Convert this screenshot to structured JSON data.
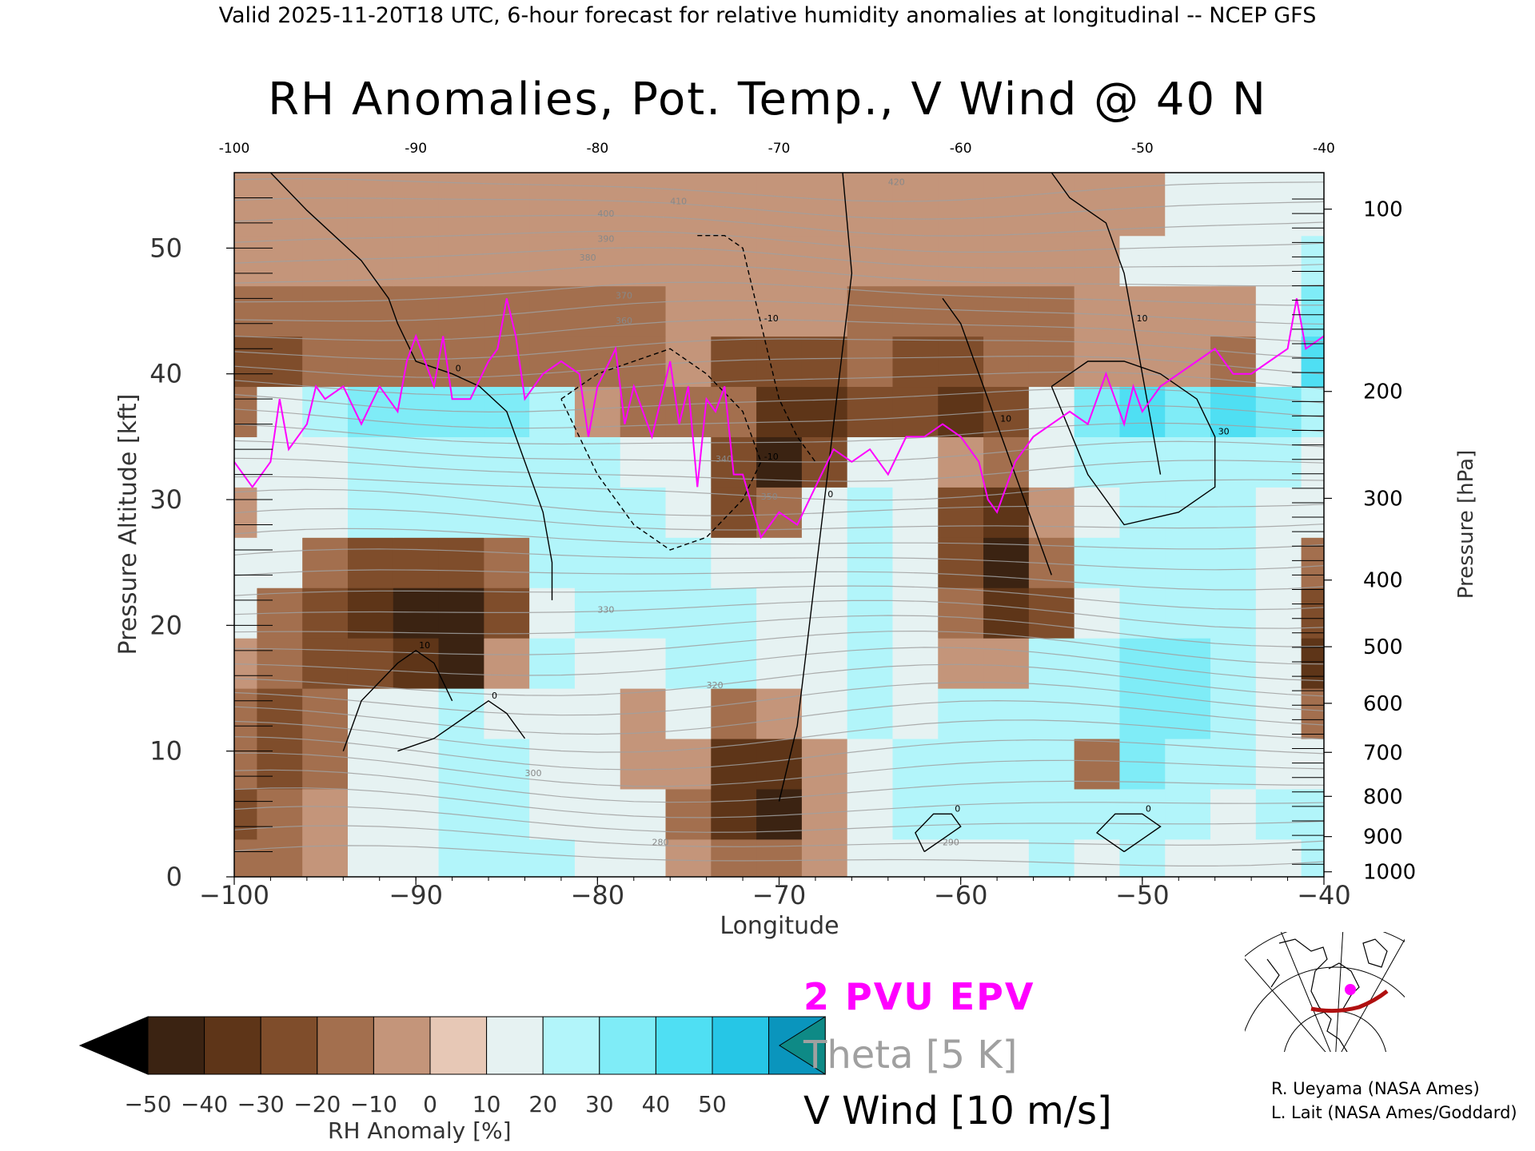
{
  "header": {
    "text": "Valid 2025-11-20T18 UTC, 6-hour forecast for relative humidity anomalies at longitudinal -- NCEP GFS"
  },
  "chart_data": {
    "type": "heatmap",
    "title": "RH Anomalies, Pot. Temp., V Wind @ 40 N",
    "xlabel": "Longitude",
    "ylabel_left": "Pressure Altitude [kft]",
    "ylabel_right": "Pressure [hPa]",
    "xlim": [
      -100,
      -40
    ],
    "ylim": [
      0,
      56
    ],
    "x_ticks": [
      -100,
      -90,
      -80,
      -70,
      -60,
      -50,
      -40
    ],
    "x_tick_labels": [
      "−100",
      "−90",
      "−80",
      "−70",
      "−60",
      "−50",
      "−40"
    ],
    "x_top_tick_labels": [
      "-100",
      "-90",
      "-80",
      "-70",
      "-60",
      "-50",
      "-40"
    ],
    "y_left_ticks": [
      0,
      10,
      20,
      30,
      40,
      50
    ],
    "y_right_ticks": [
      {
        "label": "100",
        "kft": 53.1
      },
      {
        "label": "200",
        "kft": 38.6
      },
      {
        "label": "300",
        "kft": 30.1
      },
      {
        "label": "400",
        "kft": 23.6
      },
      {
        "label": "500",
        "kft": 18.3
      },
      {
        "label": "600",
        "kft": 13.8
      },
      {
        "label": "700",
        "kft": 9.9
      },
      {
        "label": "800",
        "kft": 6.4
      },
      {
        "label": "900",
        "kft": 3.2
      },
      {
        "label": "1000",
        "kft": 0.4
      }
    ],
    "rh_anomaly_field": {
      "x_lon": [
        -100,
        -97.5,
        -95,
        -92.5,
        -90,
        -87.5,
        -85,
        -82.5,
        -80,
        -77.5,
        -75,
        -72.5,
        -70,
        -67.5,
        -65,
        -62.5,
        -60,
        -57.5,
        -55,
        -52.5,
        -50,
        -47.5,
        -45,
        -42.5,
        -40
      ],
      "y_kft": [
        1,
        5,
        9,
        13,
        17,
        21,
        25,
        29,
        33,
        37,
        41,
        45,
        49,
        53
      ],
      "values": [
        [
          -20,
          -15,
          -5,
          10,
          15,
          20,
          25,
          20,
          10,
          5,
          -10,
          -20,
          -15,
          -5,
          10,
          15,
          10,
          15,
          20,
          15,
          20,
          15,
          10,
          15,
          20
        ],
        [
          -25,
          -20,
          -10,
          5,
          15,
          20,
          20,
          15,
          10,
          5,
          -15,
          -40,
          -45,
          -10,
          15,
          20,
          20,
          20,
          25,
          20,
          25,
          20,
          15,
          20,
          25
        ],
        [
          -20,
          -25,
          -15,
          5,
          15,
          25,
          20,
          15,
          15,
          -5,
          -10,
          -35,
          -35,
          -10,
          15,
          20,
          20,
          25,
          25,
          -20,
          30,
          25,
          20,
          15,
          10
        ],
        [
          -15,
          -25,
          -20,
          0,
          10,
          20,
          15,
          10,
          15,
          -10,
          10,
          -15,
          -10,
          10,
          20,
          15,
          20,
          20,
          20,
          25,
          35,
          30,
          25,
          15,
          -20
        ],
        [
          -10,
          -20,
          -25,
          -30,
          -40,
          -45,
          -10,
          20,
          15,
          15,
          25,
          20,
          5,
          15,
          20,
          10,
          -5,
          -10,
          25,
          25,
          30,
          30,
          25,
          10,
          -35
        ],
        [
          0,
          -15,
          -30,
          -40,
          -45,
          -45,
          -30,
          15,
          20,
          20,
          25,
          20,
          15,
          15,
          20,
          15,
          -20,
          -40,
          -30,
          15,
          25,
          25,
          20,
          15,
          -30
        ],
        [
          10,
          5,
          -20,
          -30,
          -30,
          -25,
          -15,
          20,
          25,
          20,
          25,
          15,
          15,
          15,
          20,
          10,
          -30,
          -45,
          -20,
          20,
          25,
          25,
          20,
          15,
          -15
        ],
        [
          -10,
          15,
          15,
          20,
          20,
          20,
          20,
          20,
          20,
          20,
          15,
          -25,
          -20,
          15,
          20,
          15,
          -25,
          -40,
          -10,
          15,
          20,
          20,
          20,
          15,
          10
        ],
        [
          15,
          15,
          15,
          20,
          20,
          20,
          25,
          20,
          20,
          15,
          10,
          -30,
          -45,
          -30,
          15,
          15,
          -10,
          -20,
          5,
          20,
          20,
          20,
          20,
          20,
          15
        ],
        [
          -15,
          10,
          25,
          30,
          35,
          30,
          35,
          25,
          -10,
          -15,
          -15,
          -20,
          -40,
          -35,
          -25,
          -25,
          -35,
          -30,
          15,
          35,
          40,
          35,
          40,
          35,
          20
        ],
        [
          -25,
          -30,
          -20,
          -20,
          -15,
          -15,
          -20,
          -20,
          -20,
          -15,
          -10,
          -25,
          -25,
          -25,
          -15,
          -25,
          -30,
          -20,
          -15,
          -10,
          -10,
          -10,
          -15,
          15,
          45
        ],
        [
          -15,
          -20,
          -20,
          -15,
          -15,
          -15,
          -15,
          -15,
          -15,
          -15,
          -10,
          -10,
          -10,
          -10,
          -15,
          -15,
          -15,
          -15,
          -15,
          -10,
          -10,
          -5,
          -5,
          10,
          30
        ],
        [
          -10,
          -10,
          -10,
          -10,
          -10,
          -10,
          -10,
          -10,
          -10,
          -5,
          -5,
          -5,
          -5,
          -5,
          -5,
          -10,
          -10,
          -10,
          -5,
          -5,
          0,
          0,
          5,
          15,
          25
        ],
        [
          -5,
          -5,
          -5,
          -5,
          -5,
          -5,
          -5,
          -5,
          -5,
          -5,
          -5,
          -5,
          -5,
          -5,
          -5,
          -5,
          -5,
          -5,
          -5,
          -5,
          -5,
          0,
          0,
          5,
          5
        ]
      ]
    },
    "epv_2pvu_line": {
      "lon": [
        -100,
        -99,
        -98,
        -97.5,
        -97,
        -96,
        -95.5,
        -95,
        -94,
        -93,
        -92,
        -91,
        -90.5,
        -90,
        -89,
        -88.5,
        -88,
        -87,
        -86,
        -85.5,
        -85,
        -84.5,
        -84,
        -83,
        -82,
        -81,
        -80.5,
        -80,
        -79,
        -78.5,
        -78,
        -77,
        -76,
        -75.5,
        -75,
        -74.5,
        -74,
        -73.5,
        -73,
        -72.5,
        -72,
        -71,
        -70,
        -69,
        -68,
        -67,
        -66,
        -65,
        -64,
        -63,
        -62,
        -61,
        -60,
        -59,
        -58.5,
        -58,
        -57,
        -56,
        -55,
        -54,
        -53,
        -52,
        -51,
        -50.5,
        -50,
        -49,
        -48,
        -47,
        -46,
        -45,
        -44,
        -43,
        -42,
        -41.5,
        -41,
        -40
      ],
      "kft": [
        33,
        31,
        33,
        38,
        34,
        36,
        39,
        38,
        39,
        36,
        39,
        37,
        41,
        43,
        39,
        43,
        38,
        38,
        41,
        42,
        46,
        43,
        38,
        40,
        41,
        40,
        35,
        39,
        42,
        36,
        39,
        35,
        41,
        36,
        39,
        31,
        38,
        37,
        39,
        32,
        32,
        27,
        29,
        28,
        31,
        34,
        33,
        34,
        32,
        35,
        35,
        36,
        35,
        33,
        30,
        29,
        33,
        35,
        36,
        37,
        36,
        40,
        36,
        39,
        37,
        39,
        40,
        41,
        42,
        40,
        40,
        41,
        42,
        46,
        42,
        43
      ]
    },
    "vwind_contours": [
      {
        "label": "0",
        "style": "solid",
        "lon": [
          -98,
          -96,
          -93,
          -91.5,
          -91,
          -90,
          -88,
          -86.5,
          -85,
          -84,
          -83,
          -82.5,
          -82.5
        ],
        "kft": [
          56,
          53,
          49,
          46,
          44,
          41,
          40,
          39,
          37,
          33,
          29,
          25,
          22
        ]
      },
      {
        "label": "0",
        "style": "solid",
        "lon": [
          -66.5,
          -66,
          -66.5,
          -67,
          -67.5,
          -68,
          -68.5,
          -69,
          -70
        ],
        "kft": [
          56,
          48,
          42,
          36,
          30,
          24,
          18,
          12,
          6
        ]
      },
      {
        "label": "10",
        "style": "solid",
        "lon": [
          -55,
          -54,
          -52,
          -51,
          -50.5,
          -50,
          -49.5,
          -49
        ],
        "kft": [
          56,
          54,
          52,
          48,
          44,
          40,
          36,
          32
        ]
      },
      {
        "label": "10",
        "style": "solid",
        "lon": [
          -61,
          -60,
          -59,
          -58,
          -57,
          -56,
          -55
        ],
        "kft": [
          46,
          44,
          40,
          36,
          32,
          28,
          24
        ]
      },
      {
        "label": "30",
        "style": "solid",
        "lon": [
          -55,
          -53,
          -51,
          -49,
          -47,
          -46,
          -46,
          -48,
          -51,
          -53,
          -55
        ],
        "kft": [
          39,
          41,
          41,
          40,
          38,
          35,
          31,
          29,
          28,
          32,
          39
        ]
      },
      {
        "label": "-10",
        "style": "dashed",
        "lon": [
          -82,
          -80,
          -78,
          -76,
          -74,
          -72,
          -71,
          -72,
          -74,
          -76,
          -78,
          -80,
          -82
        ],
        "kft": [
          38,
          40,
          41,
          42,
          40,
          37,
          33,
          30,
          27,
          26,
          28,
          32,
          38
        ]
      },
      {
        "label": "-10",
        "style": "dashed",
        "lon": [
          -74.5,
          -73,
          -72,
          -71.5,
          -71,
          -70.5,
          -70,
          -69,
          -68
        ],
        "kft": [
          51,
          51,
          50,
          47,
          44,
          41,
          38,
          35,
          33
        ]
      },
      {
        "label": "10",
        "style": "solid",
        "lon": [
          -94,
          -93,
          -91,
          -90,
          -89,
          -88
        ],
        "kft": [
          10,
          14,
          17,
          18,
          17,
          14
        ]
      },
      {
        "label": "0",
        "style": "solid",
        "lon": [
          -91,
          -89,
          -87,
          -86,
          -85,
          -84
        ],
        "kft": [
          10,
          11,
          13,
          14,
          13,
          11
        ]
      },
      {
        "label": "0",
        "style": "solid",
        "lon": [
          -62,
          -61,
          -60,
          -60.5,
          -61.5,
          -62.5,
          -62
        ],
        "kft": [
          2,
          3,
          4,
          5,
          5,
          3.5,
          2
        ]
      },
      {
        "label": "0",
        "style": "solid",
        "lon": [
          -51,
          -50,
          -49,
          -50,
          -51.5,
          -52.5,
          -51
        ],
        "kft": [
          2,
          3,
          4,
          5,
          5,
          3.5,
          2
        ]
      }
    ],
    "theta_levels": [
      "280",
      "290",
      "300",
      "320",
      "330",
      "340",
      "350",
      "360",
      "370",
      "380",
      "390",
      "400",
      "410",
      "420"
    ],
    "theta_contour_spacing_kft": 1.4
  },
  "colorbar": {
    "label": "RH Anomaly [%]",
    "ticks": [
      "−50",
      "−40",
      "−30",
      "−20",
      "−10",
      "0",
      "10",
      "20",
      "30",
      "40",
      "50"
    ],
    "colors": [
      "#000000",
      "#3b2312",
      "#5e3518",
      "#7f4d2b",
      "#a36f4e",
      "#c4957a",
      "#e7c8b6",
      "#e6f2f2",
      "#b2f5fa",
      "#7fecf7",
      "#4fdff3",
      "#26c6e6",
      "#0a95bd",
      "#0e8a86"
    ]
  },
  "legend": {
    "epv": "2 PVU EPV",
    "theta": "Theta [5 K]",
    "vwind": "V Wind [10 m/s]"
  },
  "credits": {
    "line1": "R. Ueyama (NASA Ames)",
    "line2": "L. Lait (NASA Ames/Goddard)"
  },
  "colors": {
    "epv_line": "#ff00ff",
    "theta_line": "#a0a0a0",
    "vwind_line": "#000000",
    "map_track": "#b01010",
    "map_marker": "#ff00ff"
  }
}
